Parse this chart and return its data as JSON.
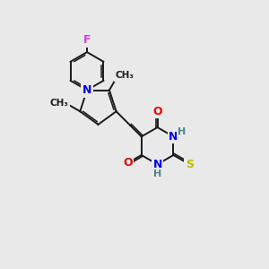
{
  "background_color": "#e9e9e9",
  "bond_color": "#1a1a1a",
  "bond_width": 1.4,
  "dbo": 0.12,
  "atom_colors": {
    "F": "#cc44cc",
    "N": "#0000ee",
    "O": "#ee0000",
    "S": "#bbbb00",
    "H": "#448888",
    "C": "#1a1a1a"
  },
  "figsize": [
    3.0,
    3.0
  ],
  "dpi": 100
}
